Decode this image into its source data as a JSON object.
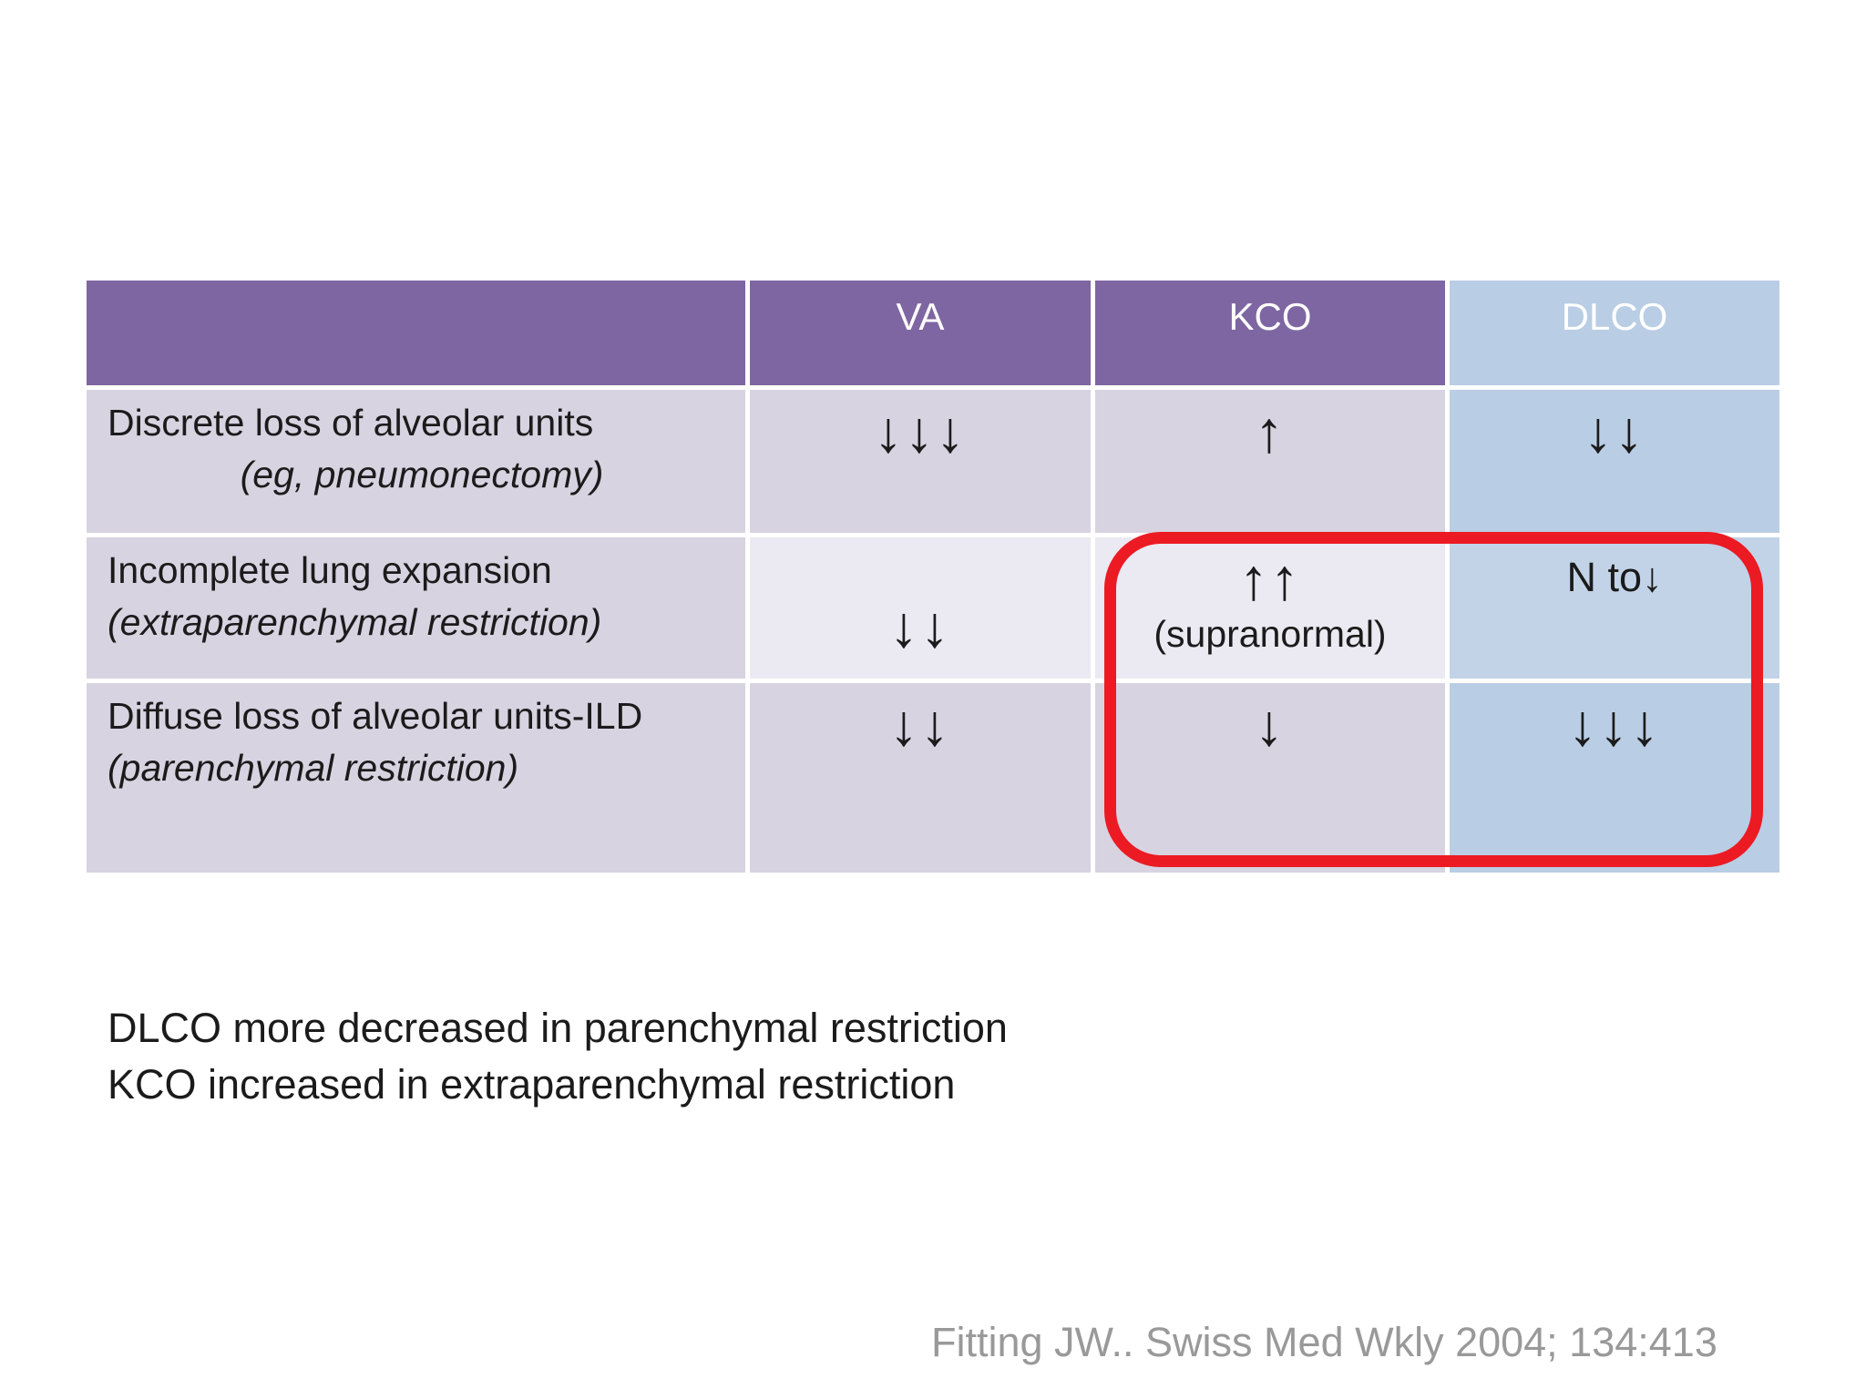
{
  "table": {
    "columns": [
      "",
      "VA",
      "KCO",
      "DLCO"
    ],
    "rows": [
      {
        "label_line1": "Discrete loss of alveolar units",
        "label_line2": "(eg, pneumonectomy)",
        "va": "↓↓↓",
        "kco": "↑",
        "dlco": "↓↓"
      },
      {
        "label_line1": "Incomplete lung expansion",
        "label_line2": "(extraparenchymal restriction)",
        "va": "↓↓",
        "kco": "↑↑",
        "kco_note": "(supranormal)",
        "dlco": "N to↓"
      },
      {
        "label_line1": "Diffuse loss of alveolar units-ILD",
        "label_line2": "(parenchymal restriction)",
        "va": "↓↓",
        "kco": "↓",
        "dlco": "↓↓↓"
      }
    ]
  },
  "annotation": {
    "shape": "red-rounded-rectangle",
    "meaning": "highlights KCO and DLCO values in extraparenchymal and parenchymal restriction rows"
  },
  "notes": {
    "line1": "DLCO more decreased in parenchymal restriction",
    "line2": "KCO increased in extraparenchymal restriction"
  },
  "citation": "Fitting JW.. Swiss Med Wkly 2004; 134:413",
  "colors": {
    "header_purple": "#7e66a2",
    "header_blue": "#b9cde4",
    "row_odd": "#d8d3e1",
    "row_even": "#ebe9f1",
    "dlco_row_even": "#c2d3e8",
    "annotation_red": "#ec1a23",
    "text": "#1b1b1b",
    "citation_gray": "#999999"
  }
}
